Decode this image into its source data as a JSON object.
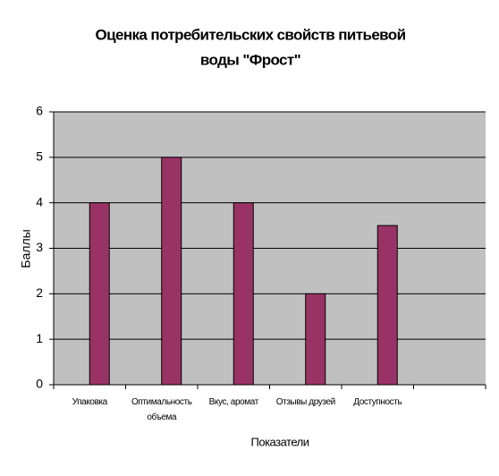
{
  "chart_data": {
    "type": "bar",
    "title": [
      "Оценка потребительских свойств питьевой",
      "воды \"Фрост\""
    ],
    "x_label": "Показатели",
    "y_label": "Баллы",
    "categories": [
      "Упаковка",
      "Оптимальность объема",
      "Вкус, аромат",
      "Отзывы друзей",
      "Доступность",
      null
    ],
    "values": [
      4,
      5,
      4,
      2,
      3.5,
      null
    ],
    "color": "#993366",
    "ylim": [
      0,
      6
    ],
    "yticks": [
      0,
      1,
      2,
      3,
      4,
      5,
      6
    ],
    "grid": true
  }
}
